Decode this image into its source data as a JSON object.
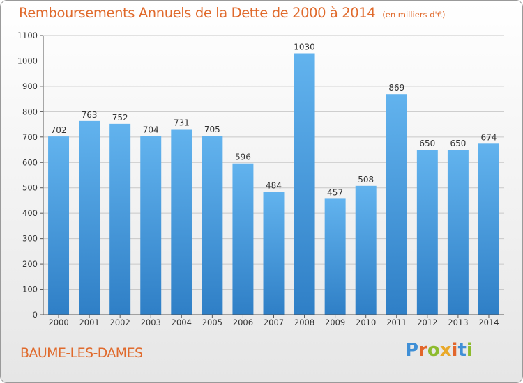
{
  "title": "Remboursements Annuels de la Dette de 2000 à 2014",
  "unit": "(en milliers d'€)",
  "commune": "BAUME-LES-DAMES",
  "logo": "Proxiti",
  "colors": {
    "accent": "#e06a2c",
    "bar_top": "#62b3ee",
    "bar_bottom": "#2f7fc6"
  },
  "chart_data": {
    "type": "bar",
    "title": "Remboursements Annuels de la Dette de 2000 à 2014",
    "xlabel": "",
    "ylabel": "",
    "ylim": [
      0,
      1100
    ],
    "yticks": [
      0,
      100,
      200,
      300,
      400,
      500,
      600,
      700,
      800,
      900,
      1000,
      1100
    ],
    "grid": true,
    "categories": [
      "2000",
      "2001",
      "2002",
      "2003",
      "2004",
      "2005",
      "2006",
      "2007",
      "2008",
      "2009",
      "2010",
      "2011",
      "2012",
      "2013",
      "2014"
    ],
    "values": [
      702,
      763,
      752,
      704,
      731,
      705,
      596,
      484,
      1030,
      457,
      508,
      869,
      650,
      650,
      674
    ]
  }
}
